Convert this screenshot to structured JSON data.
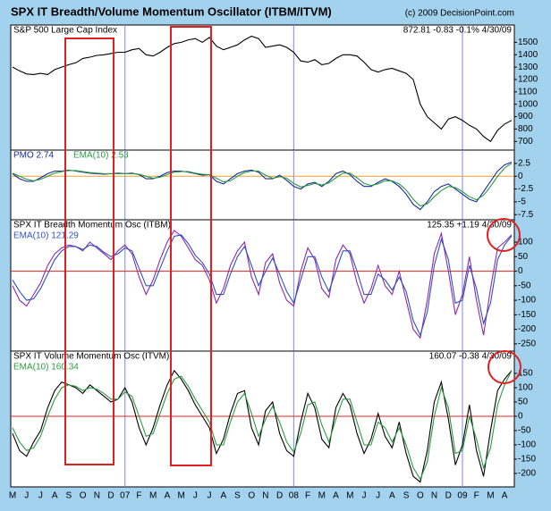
{
  "chart_data": {
    "type": "line",
    "title": "SPX IT Breadth/Volume Momentum Oscillator (ITBM/ITVM)",
    "copyright": "(c) 2009 DecisionPoint.com",
    "categories": [
      "M",
      null,
      "J",
      null,
      "J",
      null,
      "A",
      null,
      "S",
      null,
      "O",
      null,
      "N",
      null,
      "D",
      null,
      "07",
      null,
      "F",
      null,
      "M",
      null,
      "A",
      null,
      "M",
      null,
      "J",
      null,
      "J",
      null,
      "A",
      null,
      "S",
      null,
      "O",
      null,
      "N",
      null,
      "D",
      null,
      "08",
      null,
      "F",
      null,
      "M",
      null,
      "A",
      null,
      "M",
      null,
      "J",
      null,
      "J",
      null,
      "A",
      null,
      "S",
      null,
      "O",
      null,
      "N",
      null,
      "D",
      null,
      "09",
      null,
      "F",
      null,
      "M",
      null,
      "A",
      null
    ],
    "panels": [
      {
        "title": "S&P 500 Large Cap Index",
        "info": "872.81  -0.83  -0.1%  4/30/09",
        "ylim": [
          630,
          1640
        ],
        "yticks": [
          700,
          800,
          900,
          1000,
          1100,
          1200,
          1300,
          1400,
          1500
        ],
        "series": [
          {
            "name": "S&P 500",
            "color": "#000000",
            "values": [
              1300,
              1270,
              1245,
              1240,
              1250,
              1240,
              1280,
              1300,
              1320,
              1335,
              1370,
              1380,
              1395,
              1400,
              1410,
              1420,
              1420,
              1440,
              1450,
              1400,
              1390,
              1420,
              1460,
              1490,
              1500,
              1520,
              1530,
              1500,
              1540,
              1470,
              1440,
              1460,
              1480,
              1520,
              1550,
              1530,
              1460,
              1470,
              1480,
              1460,
              1420,
              1350,
              1340,
              1360,
              1320,
              1330,
              1370,
              1400,
              1400,
              1390,
              1340,
              1280,
              1260,
              1280,
              1290,
              1270,
              1250,
              1200,
              1000,
              900,
              850,
              800,
              880,
              900,
              870,
              830,
              800,
              740,
              700,
              790,
              840,
              870
            ]
          }
        ]
      },
      {
        "title": "PMO 2.74",
        "subtitle": "EMA(10) 2.53",
        "zero_color": "#e8a030",
        "ylim": [
          -8.5,
          5.1
        ],
        "yticks": [
          2.5,
          0,
          -2.5,
          -5,
          -7.5
        ],
        "series": [
          {
            "name": "PMO",
            "color": "#1a2a9a",
            "values": [
              0.5,
              -0.5,
              -1,
              -1,
              -0.3,
              0.5,
              1,
              1,
              1.2,
              1,
              0.8,
              0.6,
              0.5,
              0.4,
              0.5,
              0.6,
              0.5,
              0.6,
              0.3,
              -0.5,
              -0.5,
              0,
              0.7,
              1,
              1,
              0.8,
              0.5,
              0.2,
              0.3,
              -1,
              -1.5,
              -0.5,
              0.5,
              1,
              1.2,
              0.8,
              -0.5,
              -0.5,
              0.2,
              -0.8,
              -2,
              -2.5,
              -1.5,
              -1.2,
              -2,
              -1,
              0.5,
              1,
              0.3,
              -1,
              -2,
              -2,
              -1.2,
              -0.5,
              -1,
              -2,
              -3.5,
              -5.5,
              -6.5,
              -5,
              -3,
              -2,
              -1.5,
              -2.5,
              -3.5,
              -4.5,
              -5,
              -3,
              -1,
              1,
              2.2,
              2.74
            ]
          },
          {
            "name": "EMA(10)",
            "color": "#2a9a40",
            "values": [
              0.6,
              0,
              -0.6,
              -0.9,
              -0.6,
              0,
              0.6,
              0.9,
              1.1,
              1.1,
              0.9,
              0.7,
              0.6,
              0.5,
              0.5,
              0.5,
              0.5,
              0.5,
              0.4,
              0,
              -0.4,
              -0.2,
              0.3,
              0.8,
              0.9,
              0.9,
              0.6,
              0.4,
              0.3,
              -0.4,
              -1.1,
              -0.9,
              0,
              0.7,
              1,
              1,
              0.2,
              -0.4,
              -0.1,
              -0.4,
              -1.4,
              -2.1,
              -1.8,
              -1.4,
              -1.7,
              -1.3,
              -0.3,
              0.6,
              0.6,
              -0.3,
              -1.4,
              -1.8,
              -1.5,
              -0.9,
              -0.9,
              -1.5,
              -2.7,
              -4.5,
              -5.8,
              -5.4,
              -4,
              -2.8,
              -2,
              -2.2,
              -3,
              -4,
              -4.6,
              -3.7,
              -2,
              0,
              1.6,
              2.53
            ]
          }
        ]
      },
      {
        "title": "SPX IT Breadth Momentum Osc (ITBM)",
        "subtitle": "EMA(10) 121.29",
        "info": "125.35  +1.19  4/30/09",
        "zero_color": "#e02020",
        "ylim": [
          -275,
          177
        ],
        "yticks": [
          100,
          50,
          0,
          -50,
          -100,
          -150,
          -200,
          -250
        ],
        "series": [
          {
            "name": "ITBM",
            "color": "#8a2ab0",
            "values": [
              -50,
              -100,
              -120,
              -80,
              -40,
              20,
              60,
              80,
              90,
              85,
              70,
              100,
              80,
              60,
              40,
              70,
              90,
              60,
              -20,
              -80,
              -30,
              40,
              100,
              140,
              120,
              80,
              40,
              20,
              -30,
              -110,
              -60,
              20,
              70,
              100,
              -20,
              -80,
              30,
              60,
              -40,
              -100,
              -120,
              0,
              80,
              40,
              -60,
              -90,
              40,
              90,
              60,
              -40,
              -110,
              -60,
              20,
              -50,
              -80,
              0,
              -100,
              -200,
              -230,
              -100,
              60,
              130,
              0,
              -150,
              -80,
              50,
              -100,
              -220,
              -60,
              80,
              100,
              125.35
            ]
          },
          {
            "name": "EMA(10)",
            "color": "#3050c0",
            "values": [
              -30,
              -70,
              -100,
              -95,
              -60,
              -10,
              40,
              70,
              85,
              85,
              75,
              90,
              85,
              65,
              50,
              60,
              80,
              70,
              10,
              -50,
              -50,
              10,
              70,
              120,
              125,
              95,
              55,
              30,
              -10,
              -80,
              -80,
              -10,
              50,
              85,
              20,
              -50,
              0,
              45,
              -10,
              -70,
              -110,
              -30,
              50,
              50,
              -20,
              -70,
              0,
              70,
              70,
              0,
              -80,
              -80,
              -10,
              -30,
              -65,
              -20,
              -70,
              -170,
              -220,
              -140,
              20,
              110,
              40,
              -110,
              -100,
              20,
              -60,
              -180,
              -110,
              40,
              90,
              121.29
            ]
          }
        ]
      },
      {
        "title": "SPX IT Volume Momentum Osc (ITVM)",
        "subtitle": "EMA(10) 160.34",
        "info": "160.07  -0.38  4/30/09",
        "zero_color": "#e02020",
        "ylim": [
          -247,
          228
        ],
        "yticks": [
          150,
          100,
          50,
          0,
          -50,
          -100,
          -150,
          -200
        ],
        "series": [
          {
            "name": "ITVM",
            "color": "#000000",
            "values": [
              -60,
              -120,
              -140,
              -90,
              -50,
              30,
              90,
              120,
              110,
              100,
              80,
              110,
              90,
              70,
              50,
              60,
              100,
              50,
              -40,
              -100,
              -40,
              40,
              110,
              160,
              130,
              90,
              40,
              0,
              -40,
              -130,
              -80,
              10,
              80,
              90,
              -40,
              -100,
              20,
              50,
              -60,
              -120,
              -140,
              -20,
              80,
              30,
              -80,
              -110,
              30,
              80,
              40,
              -60,
              -130,
              -80,
              10,
              -70,
              -110,
              -20,
              -130,
              -210,
              -230,
              -120,
              50,
              120,
              -10,
              -170,
              -100,
              40,
              -120,
              -210,
              -50,
              90,
              130,
              160.07
            ]
          },
          {
            "name": "EMA(10)",
            "color": "#2a9a40",
            "values": [
              -40,
              -90,
              -120,
              -110,
              -70,
              0,
              60,
              100,
              110,
              105,
              90,
              100,
              95,
              80,
              60,
              60,
              85,
              70,
              0,
              -70,
              -60,
              10,
              80,
              130,
              140,
              105,
              60,
              20,
              -20,
              -100,
              -100,
              -20,
              50,
              80,
              10,
              -70,
              -10,
              35,
              -20,
              -90,
              -125,
              -60,
              40,
              50,
              -30,
              -90,
              -10,
              60,
              60,
              -20,
              -100,
              -100,
              -20,
              -40,
              -90,
              -40,
              -100,
              -180,
              -220,
              -160,
              0,
              100,
              30,
              -130,
              -120,
              0,
              -80,
              -180,
              -110,
              40,
              110,
              160.34
            ]
          }
        ]
      }
    ]
  }
}
